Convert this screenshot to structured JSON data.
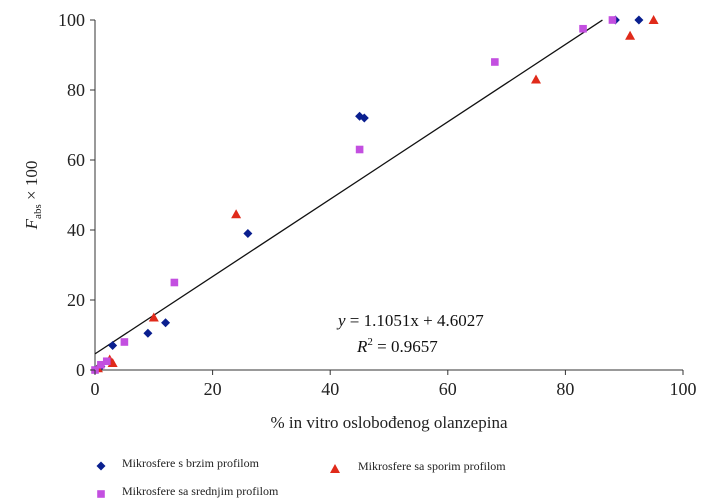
{
  "chart_data": {
    "type": "scatter",
    "xlabel": "% in vitro oslobođenog olanzepina",
    "ylabel_main": "F",
    "ylabel_sub": "abs",
    "ylabel_rest": " × 100",
    "xlim": [
      0,
      100
    ],
    "ylim": [
      0,
      100
    ],
    "x_ticks": [
      0,
      20,
      40,
      60,
      80,
      100
    ],
    "y_ticks": [
      0,
      20,
      40,
      60,
      80,
      100
    ],
    "grid": false,
    "legend_position": "bottom-left",
    "equation": {
      "line1_var": "y",
      "line1_rest": " = 1.1051x + 4.6027",
      "line2_var": "R",
      "line2_sup": "2",
      "line2_rest": " = 0.9657"
    },
    "trendline": {
      "slope": 1.1051,
      "intercept": 4.6027,
      "x_start": 0,
      "x_end": 86.3
    },
    "series": [
      {
        "name": "Mikrosfere s brzim profilom",
        "marker": "diamond",
        "color": "#0a1f8f",
        "points": [
          [
            0,
            0
          ],
          [
            0.5,
            0.5
          ],
          [
            1,
            1
          ],
          [
            3,
            7
          ],
          [
            9,
            10.5
          ],
          [
            12,
            13.5
          ],
          [
            26,
            39
          ],
          [
            45,
            72.5
          ],
          [
            45.8,
            72
          ],
          [
            88.5,
            100
          ],
          [
            92.5,
            100
          ]
        ]
      },
      {
        "name": "Mikrosfere sa sporim profilom",
        "marker": "triangle",
        "color": "#e02a1a",
        "points": [
          [
            0.5,
            0.5
          ],
          [
            2.5,
            3
          ],
          [
            3,
            2
          ],
          [
            10,
            15
          ],
          [
            24,
            44.5
          ],
          [
            75,
            83
          ],
          [
            91,
            95.5
          ],
          [
            95,
            100
          ]
        ]
      },
      {
        "name": "Mikrosfere sa srednjim profilom",
        "marker": "square",
        "color": "#c34fe0",
        "points": [
          [
            0,
            0
          ],
          [
            1,
            1.5
          ],
          [
            2,
            2.5
          ],
          [
            5,
            8
          ],
          [
            13.5,
            25
          ],
          [
            45,
            63
          ],
          [
            68,
            88
          ],
          [
            83,
            97.5
          ],
          [
            88,
            100
          ]
        ]
      }
    ]
  }
}
